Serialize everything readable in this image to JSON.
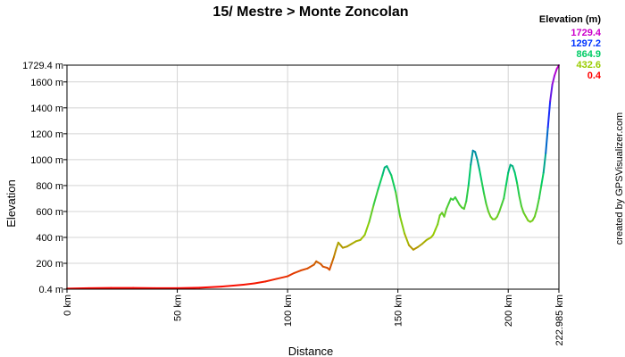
{
  "chart_data": {
    "type": "line",
    "title": "15/ Mestre > Monte Zoncolan",
    "xlabel": "Distance",
    "ylabel": "Elevation",
    "xlim": [
      0,
      222.985
    ],
    "ylim": [
      0.4,
      1729.4
    ],
    "x_ticks": [
      {
        "value": 0,
        "label": "0 km"
      },
      {
        "value": 50,
        "label": "50 km"
      },
      {
        "value": 100,
        "label": "100 km"
      },
      {
        "value": 150,
        "label": "150 km"
      },
      {
        "value": 200,
        "label": "200 km"
      },
      {
        "value": 222.985,
        "label": "222.985 km"
      }
    ],
    "y_ticks": [
      {
        "value": 0.4,
        "label": "0.4 m"
      },
      {
        "value": 200,
        "label": "200 m"
      },
      {
        "value": 400,
        "label": "400 m"
      },
      {
        "value": 600,
        "label": "600 m"
      },
      {
        "value": 800,
        "label": "800 m"
      },
      {
        "value": 1000,
        "label": "1000 m"
      },
      {
        "value": 1200,
        "label": "1200 m"
      },
      {
        "value": 1400,
        "label": "1400 m"
      },
      {
        "value": 1600,
        "label": "1600 m"
      },
      {
        "value": 1729.4,
        "label": "1729.4 m"
      }
    ],
    "grid": true,
    "legend": {
      "title": "Elevation (m)",
      "placement": "top-right",
      "items": [
        {
          "label": "1729.4",
          "color": "#cc00cc"
        },
        {
          "label": "1297.2",
          "color": "#0033ff"
        },
        {
          "label": "864.9",
          "color": "#00cc66"
        },
        {
          "label": "432.6",
          "color": "#99cc00"
        },
        {
          "label": "0.4",
          "color": "#ff0000"
        }
      ]
    },
    "series": [
      {
        "x": [
          0,
          10,
          20,
          30,
          40,
          50,
          60,
          70,
          80,
          85,
          90,
          95,
          100,
          103,
          106,
          109,
          110,
          112,
          113,
          115,
          116,
          118,
          119,
          120,
          121,
          122,
          123,
          124,
          125,
          127,
          129,
          131,
          133,
          135,
          137,
          139,
          141,
          143,
          144,
          145,
          147,
          149,
          151,
          153,
          155,
          157,
          159,
          161,
          163,
          165,
          166,
          167,
          168,
          169,
          170,
          171,
          172,
          173,
          174,
          175,
          176,
          177,
          178,
          179,
          180,
          181,
          182,
          183,
          184,
          185,
          186,
          187,
          188,
          189,
          190,
          191,
          192,
          193,
          194,
          195,
          196,
          197,
          198,
          199,
          200,
          201,
          202,
          203,
          204,
          205,
          206,
          207,
          208,
          209,
          210,
          211,
          212,
          213,
          214,
          215,
          216,
          217,
          218,
          219,
          220,
          221,
          222,
          222.985
        ],
        "y": [
          5,
          8,
          10,
          10,
          8,
          8,
          12,
          20,
          35,
          45,
          60,
          80,
          100,
          125,
          145,
          160,
          170,
          190,
          215,
          195,
          175,
          165,
          150,
          200,
          250,
          310,
          360,
          340,
          320,
          330,
          350,
          370,
          380,
          420,
          520,
          650,
          770,
          880,
          940,
          950,
          880,
          750,
          560,
          430,
          340,
          305,
          325,
          350,
          380,
          400,
          420,
          460,
          500,
          570,
          590,
          560,
          620,
          660,
          700,
          690,
          710,
          680,
          650,
          630,
          620,
          680,
          800,
          960,
          1070,
          1060,
          1000,
          920,
          830,
          740,
          660,
          600,
          560,
          540,
          540,
          560,
          600,
          650,
          700,
          800,
          900,
          960,
          950,
          900,
          820,
          720,
          640,
          590,
          560,
          530,
          520,
          530,
          560,
          620,
          700,
          800,
          900,
          1050,
          1250,
          1450,
          1580,
          1650,
          1700,
          1729.4
        ]
      }
    ],
    "credit": "created by GPSVisualizer.com"
  }
}
